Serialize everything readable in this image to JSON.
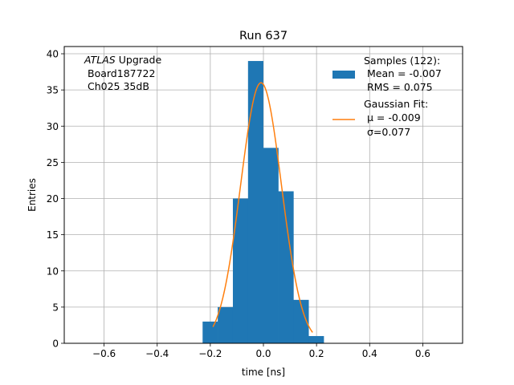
{
  "chart_data": {
    "type": "bar",
    "title": "Run 637",
    "xlabel": "time [ns]",
    "ylabel": "Entries",
    "xlim": [
      -0.75,
      0.75
    ],
    "ylim": [
      0,
      41
    ],
    "grid": true,
    "x_ticks": [
      -0.6,
      -0.4,
      -0.2,
      0.0,
      0.2,
      0.4,
      0.6
    ],
    "x_tick_labels": [
      "−0.6",
      "−0.4",
      "−0.2",
      "0.0",
      "0.2",
      "0.4",
      "0.6"
    ],
    "y_ticks": [
      0,
      5,
      10,
      15,
      20,
      25,
      30,
      35,
      40
    ],
    "y_tick_labels": [
      "0",
      "5",
      "10",
      "15",
      "20",
      "25",
      "30",
      "35",
      "40"
    ],
    "bin_edges": [
      -0.229,
      -0.172,
      -0.115,
      -0.058,
      -0.001,
      0.056,
      0.113,
      0.17,
      0.227
    ],
    "bin_counts": [
      3,
      5,
      20,
      39,
      27,
      21,
      6,
      1
    ],
    "bar_color": "#1f77b4",
    "fit": {
      "label_line1": "Gaussian Fit:",
      "label_line2": "μ = -0.009",
      "label_line3": "σ=0.077",
      "mu": -0.009,
      "sigma": 0.077,
      "peak": 36,
      "x_range": [
        -0.19,
        0.185
      ],
      "color": "#ff7f0e"
    },
    "legend": {
      "position": "top-right",
      "samples_line1": "Samples (122):",
      "samples_line2": "Mean = -0.007",
      "samples_line3": "RMS = 0.075"
    },
    "annotation": {
      "line1_italic": "ATLAS",
      "line1_rest": "Upgrade",
      "line2": "Board187722",
      "line3": "Ch025 35dB"
    }
  }
}
